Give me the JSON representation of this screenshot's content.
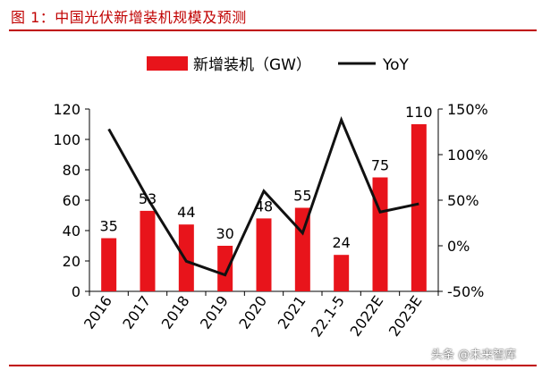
{
  "figure_title": "图 1：中国光伏新增装机规模及预测",
  "watermark": "头条 @未来智库",
  "colors": {
    "bar": "#e8141b",
    "line": "#111111",
    "title": "#c00000",
    "axis": "#000000"
  },
  "chart_data": {
    "type": "bar",
    "categories": [
      "2016",
      "2017",
      "2018",
      "2019",
      "2020",
      "2021",
      "22.1-5",
      "2022E",
      "2023E"
    ],
    "series": [
      {
        "name": "新增装机（GW）",
        "type": "bar",
        "axis": "left",
        "values": [
          35,
          53,
          44,
          30,
          48,
          55,
          24,
          75,
          110
        ]
      },
      {
        "name": "YoY",
        "type": "line",
        "axis": "right",
        "values": [
          128,
          52,
          -17,
          -32,
          60,
          14,
          138,
          37,
          46
        ]
      }
    ],
    "data_labels": [
      "35",
      "53",
      "44",
      "30",
      "48",
      "55",
      "24",
      "75",
      "110"
    ],
    "y_left": {
      "min": 0,
      "max": 120,
      "ticks": [
        0,
        20,
        40,
        60,
        80,
        100,
        120
      ]
    },
    "y_right": {
      "min": -50,
      "max": 150,
      "ticks": [
        "-50%",
        "0%",
        "50%",
        "100%",
        "150%"
      ]
    },
    "legend": "top",
    "grid": false
  }
}
